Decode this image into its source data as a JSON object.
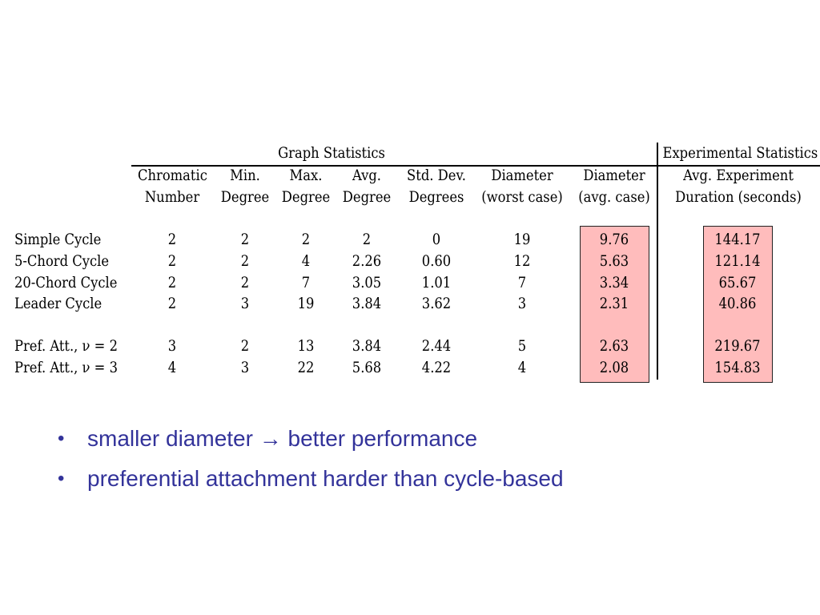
{
  "table": {
    "group_headers": {
      "graph": "Graph Statistics",
      "experimental": "Experimental Statistics"
    },
    "columns": [
      {
        "line1": "Chromatic",
        "line2": "Number"
      },
      {
        "line1": "Min.",
        "line2": "Degree"
      },
      {
        "line1": "Max.",
        "line2": "Degree"
      },
      {
        "line1": "Avg.",
        "line2": "Degree"
      },
      {
        "line1": "Std. Dev.",
        "line2": "Degrees"
      },
      {
        "line1": "Diameter",
        "line2": "(worst case)"
      },
      {
        "line1": "Diameter",
        "line2": "(avg. case)"
      },
      {
        "line1": "Avg. Experiment",
        "line2": "Duration (seconds)"
      }
    ],
    "rows": [
      {
        "label": "Simple Cycle",
        "values": [
          "2",
          "2",
          "2",
          "2",
          "0",
          "19",
          "9.76",
          "144.17"
        ]
      },
      {
        "label": "5-Chord Cycle",
        "values": [
          "2",
          "2",
          "4",
          "2.26",
          "0.60",
          "12",
          "5.63",
          "121.14"
        ]
      },
      {
        "label": "20-Chord Cycle",
        "values": [
          "2",
          "2",
          "7",
          "3.05",
          "1.01",
          "7",
          "3.34",
          "65.67"
        ]
      },
      {
        "label": "Leader Cycle",
        "values": [
          "2",
          "3",
          "19",
          "3.84",
          "3.62",
          "3",
          "2.31",
          "40.86"
        ]
      },
      {
        "label": "Pref. Att., ν = 2",
        "values": [
          "3",
          "2",
          "13",
          "3.84",
          "2.44",
          "5",
          "2.63",
          "219.67"
        ]
      },
      {
        "label": "Pref. Att., ν = 3",
        "values": [
          "4",
          "3",
          "22",
          "5.68",
          "4.22",
          "4",
          "2.08",
          "154.83"
        ]
      }
    ],
    "highlight_color": "#ffbcbc"
  },
  "bullets": [
    {
      "before": "smaller diameter ",
      "arrow": "→",
      "after": " better performance"
    },
    {
      "text": "preferential attachment harder than cycle-based"
    }
  ],
  "bullet_color": "#33339a"
}
